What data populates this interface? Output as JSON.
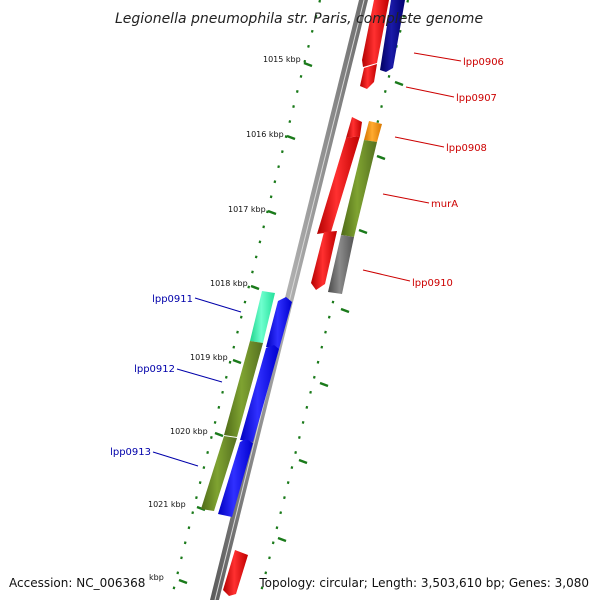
{
  "map": {
    "title": "Legionella pneumophila str. Paris, complete genome",
    "accession": "Accession: NC_006368",
    "topology": "Topology: circular; Length: 3,503,610 bp; Genes: 3,080",
    "footer_kbp": "kbp",
    "ticks": [
      "1015 kbp",
      "1016 kbp",
      "1017 kbp",
      "1018 kbp",
      "1019 kbp",
      "1020 kbp",
      "1021 kbp"
    ],
    "forward_labels": [
      "lpp0906",
      "lpp0907",
      "lpp0908",
      "murA",
      "lpp0910"
    ],
    "reverse_labels": [
      "lpp0911",
      "lpp0912",
      "lpp0913"
    ]
  },
  "colors": {
    "gene_red": "#ff0000",
    "gene_navy": "#000080",
    "gene_orange": "#ff8c00",
    "gene_olive": "#6b8e23",
    "gene_gray": "#666666",
    "gene_blue": "#0000ff",
    "gene_aqua": "#2ef7a6",
    "label_red": "#cc0000",
    "label_blue": "#0000aa",
    "tick_green": "#1a7a1a",
    "backbone": "#8a8a8a"
  }
}
